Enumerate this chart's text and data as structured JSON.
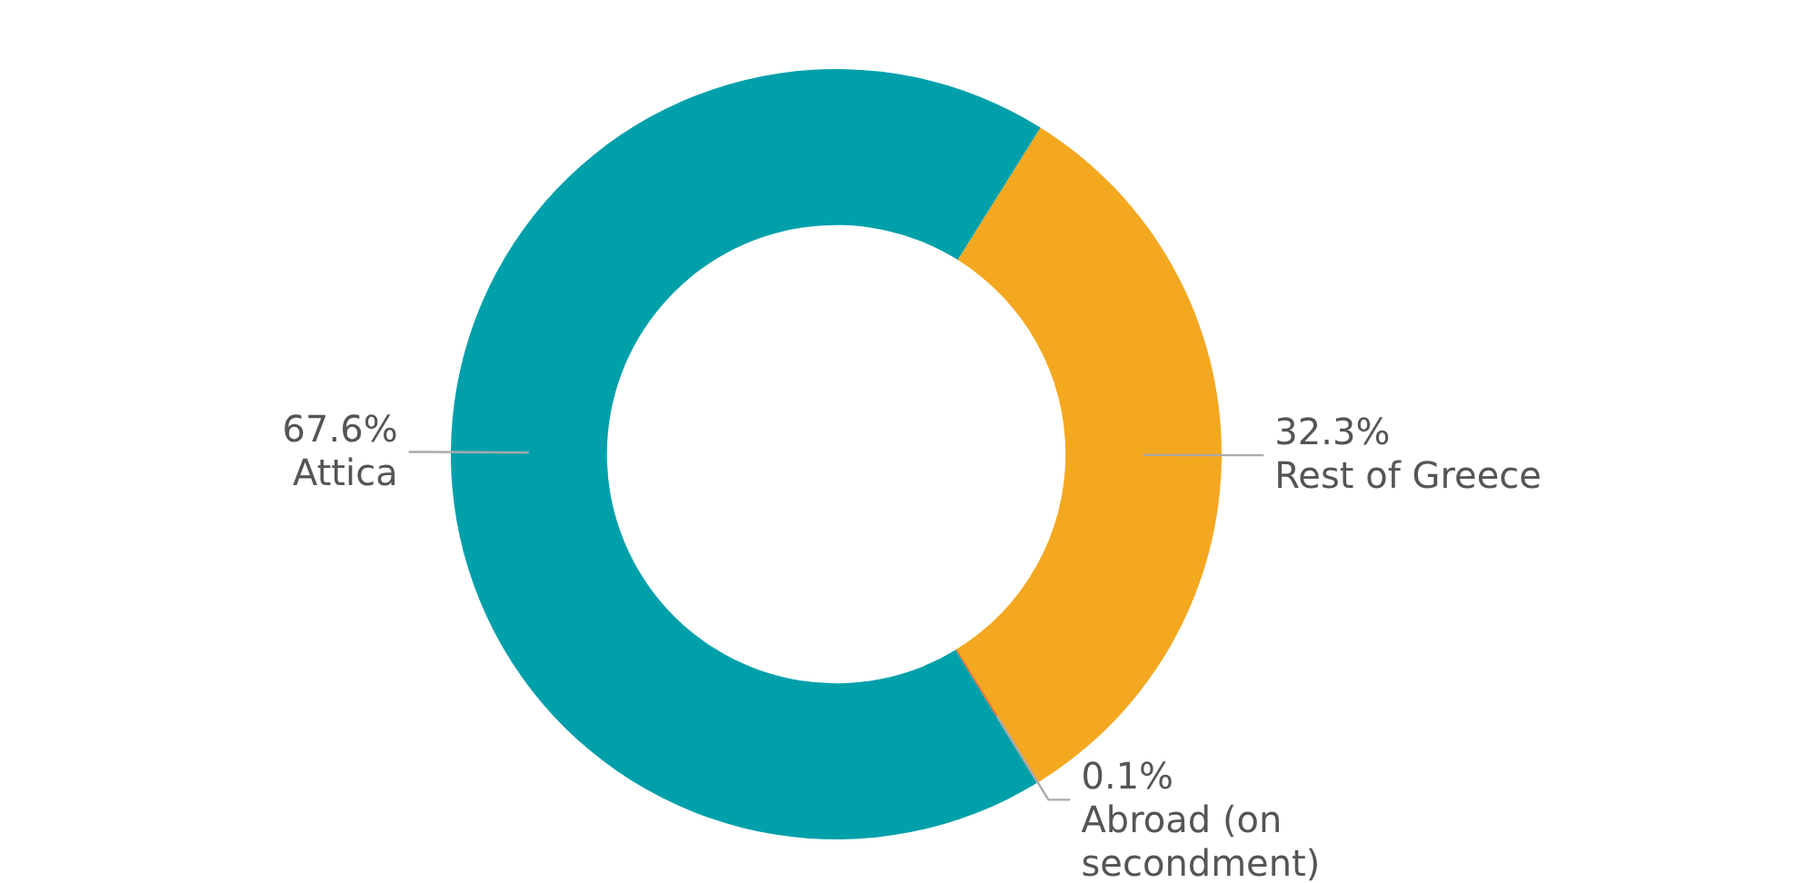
{
  "chart_data": {
    "type": "donut",
    "categories": [
      "Rest of Greece",
      "Abroad (on secondment)",
      "Attica"
    ],
    "values": [
      32.3,
      0.1,
      67.6
    ],
    "colors": [
      "#f4a820",
      "#ea6a24",
      "#00a0ab"
    ],
    "value_labels": [
      "32.3%",
      "0.1%",
      "67.6%"
    ]
  }
}
